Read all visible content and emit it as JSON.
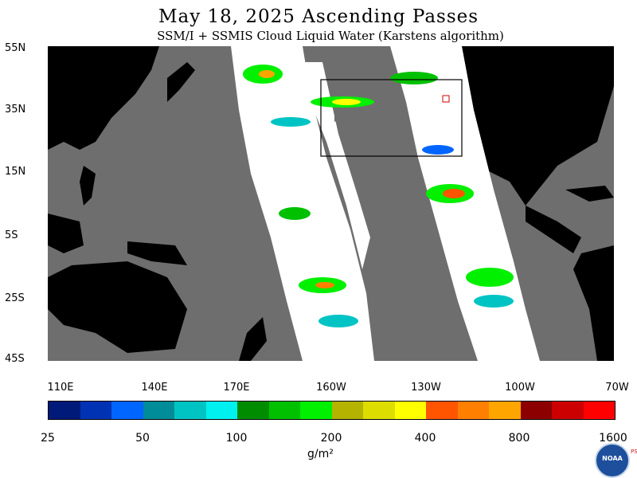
{
  "header": {
    "title": "May 18, 2025  Ascending Passes",
    "subtitle": "SSM/I + SSMIS Cloud Liquid Water (Karstens algorithm)"
  },
  "map": {
    "lat_labels": [
      "55N",
      "35N",
      "15N",
      "5S",
      "25S",
      "45S"
    ],
    "lon_labels": [
      "110E",
      "140E",
      "170E",
      "160W",
      "130W",
      "100W",
      "70W"
    ],
    "colors": {
      "ocean_background": "#6e6e6e",
      "land": "#000000",
      "no_rain_swath": "#ffffff",
      "box_outline": "#000000"
    }
  },
  "colorbar": {
    "labels": [
      "25",
      "50",
      "100",
      "200",
      "400",
      "800",
      "1600"
    ],
    "colors": [
      "#001a7a",
      "#0033b3",
      "#0066ff",
      "#008c99",
      "#00c4c4",
      "#00f0f0",
      "#008c00",
      "#00c000",
      "#00f000",
      "#b3b300",
      "#dddd00",
      "#ffff00",
      "#ff5500",
      "#ff8000",
      "#ffa500",
      "#8c0000",
      "#cc0000",
      "#ff0000"
    ],
    "units": "g/m²"
  },
  "logo": {
    "text": "NOAA",
    "side_text": "PSL"
  }
}
